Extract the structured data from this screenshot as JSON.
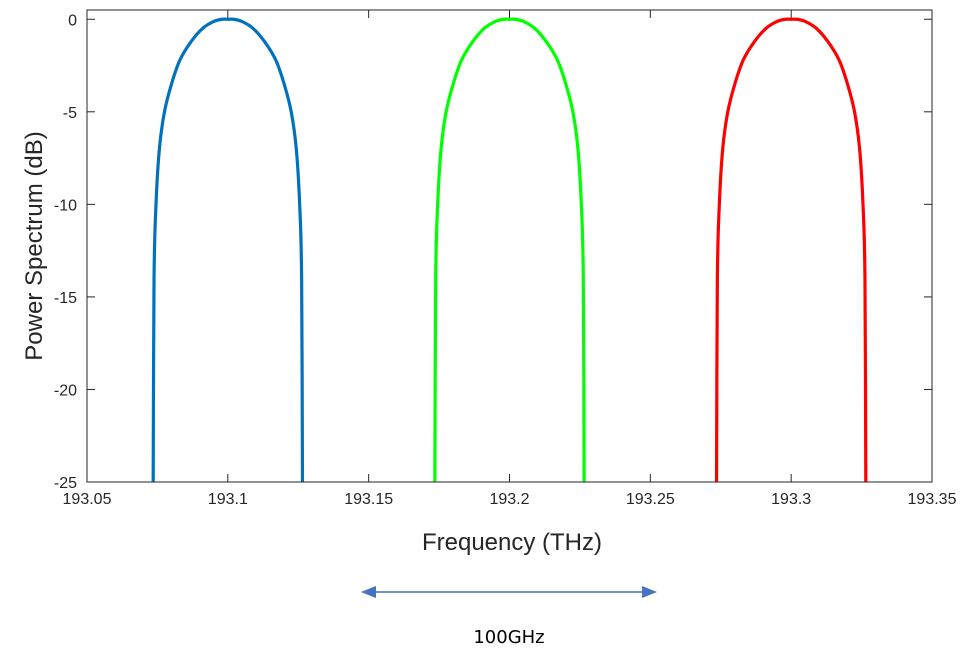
{
  "chart_data": {
    "type": "line",
    "xlabel": "Frequency (THz)",
    "ylabel": "Power Spectrum (dB)",
    "xlim": [
      193.05,
      193.35
    ],
    "ylim": [
      -25,
      0.5
    ],
    "xticks": [
      "193.05",
      "193.1",
      "193.15",
      "193.2",
      "193.25",
      "193.3",
      "193.35"
    ],
    "yticks": [
      "0",
      "-5",
      "-10",
      "-15",
      "-20",
      "-25"
    ],
    "grid": false,
    "legend": "none",
    "series": [
      {
        "color": "#0072BD",
        "x": [
          193.0735,
          193.0738,
          193.0745,
          193.0757,
          193.0775,
          193.08,
          193.083,
          193.087,
          193.091,
          193.095,
          193.098,
          193.1,
          193.102,
          193.105,
          193.109,
          193.113,
          193.117,
          193.12,
          193.1225,
          193.1243,
          193.1255,
          193.1262,
          193.1265
        ],
        "y": [
          -25,
          -14,
          -10,
          -7,
          -5,
          -3.5,
          -2.2,
          -1.2,
          -0.5,
          -0.12,
          0,
          0,
          0,
          -0.12,
          -0.5,
          -1.2,
          -2.2,
          -3.5,
          -5,
          -7,
          -10,
          -14,
          -25
        ]
      },
      {
        "color": "#00FF00",
        "x": [
          193.1735,
          193.1738,
          193.1745,
          193.1757,
          193.1775,
          193.18,
          193.183,
          193.187,
          193.191,
          193.195,
          193.198,
          193.2,
          193.202,
          193.205,
          193.209,
          193.213,
          193.217,
          193.22,
          193.2225,
          193.2243,
          193.2255,
          193.2262,
          193.2265
        ],
        "y": [
          -25,
          -14,
          -10,
          -7,
          -5,
          -3.5,
          -2.2,
          -1.2,
          -0.5,
          -0.12,
          0,
          0,
          0,
          -0.12,
          -0.5,
          -1.2,
          -2.2,
          -3.5,
          -5,
          -7,
          -10,
          -14,
          -25
        ]
      },
      {
        "color": "#FF0000",
        "x": [
          193.2735,
          193.2738,
          193.2745,
          193.2757,
          193.2775,
          193.28,
          193.283,
          193.287,
          193.291,
          193.295,
          193.298,
          193.3,
          193.302,
          193.305,
          193.309,
          193.313,
          193.317,
          193.32,
          193.3225,
          193.3243,
          193.3255,
          193.3262,
          193.3265
        ],
        "y": [
          -25,
          -14,
          -10,
          -7,
          -5,
          -3.5,
          -2.2,
          -1.2,
          -0.5,
          -0.12,
          0,
          0,
          0,
          -0.12,
          -0.5,
          -1.2,
          -2.2,
          -3.5,
          -5,
          -7,
          -10,
          -14,
          -25
        ]
      }
    ],
    "annotation": {
      "label": "100GHz",
      "color": "#4472C4"
    }
  }
}
